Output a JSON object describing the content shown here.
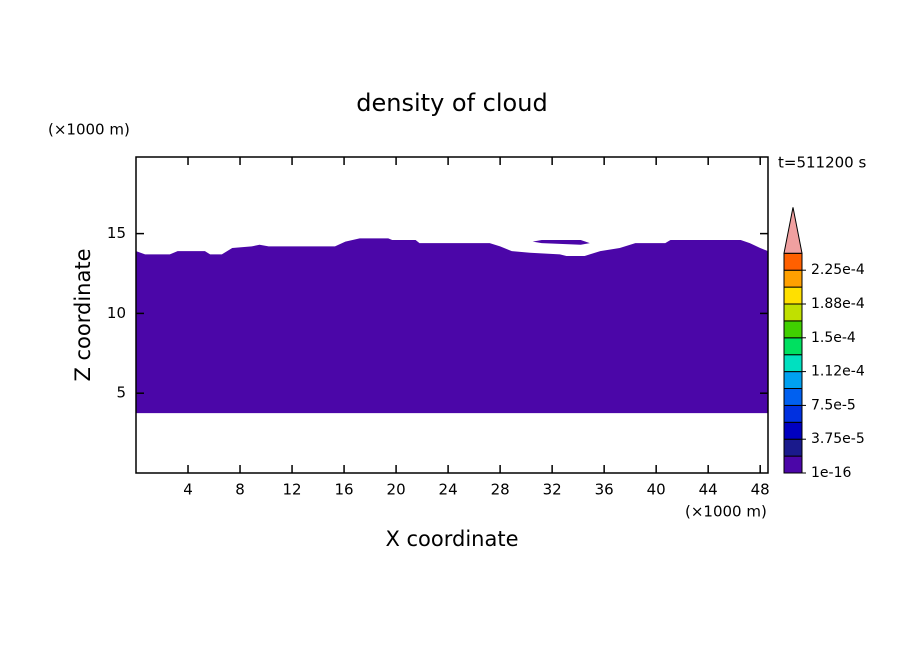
{
  "chart_data": {
    "type": "contour",
    "title": "density of cloud",
    "y_unit": "(×1000 m)",
    "x_unit": "(×1000 m)",
    "time_label": "t=511200 s",
    "xlabel": "X coordinate",
    "ylabel": "Z coordinate",
    "xlim": [
      0,
      48.6
    ],
    "ylim": [
      0,
      19.8
    ],
    "xticks": [
      4,
      8,
      12,
      16,
      20,
      24,
      28,
      32,
      36,
      40,
      44,
      48
    ],
    "yticks": [
      5,
      10,
      15
    ],
    "regions": [
      {
        "color": "#4b06a8",
        "x": [
          0,
          0.7,
          2.6,
          3.2,
          5.3,
          5.7,
          6.6,
          7.4,
          8.9,
          9.5,
          10.2,
          15.3,
          16.1,
          17.2,
          19.4,
          19.7,
          21.5,
          21.8,
          27.2,
          28,
          28.9,
          30.3,
          32.6,
          33.1,
          34.5,
          35.7,
          37.2,
          38.4,
          40.7,
          41.1,
          46.5,
          47.2,
          48,
          48.6,
          48.6,
          0
        ],
        "y": [
          13.9,
          13.7,
          13.7,
          13.9,
          13.9,
          13.7,
          13.7,
          14.1,
          14.2,
          14.3,
          14.2,
          14.2,
          14.5,
          14.7,
          14.7,
          14.6,
          14.6,
          14.4,
          14.4,
          14.2,
          13.9,
          13.8,
          13.7,
          13.6,
          13.6,
          13.9,
          14.1,
          14.4,
          14.4,
          14.6,
          14.6,
          14.4,
          14.1,
          13.9,
          3.75,
          3.75
        ]
      },
      {
        "color": "#4b06a8",
        "x": [
          30.5,
          31.2,
          34.2,
          34.9,
          34.2,
          31.2
        ],
        "y": [
          14.5,
          14.6,
          14.6,
          14.4,
          14.3,
          14.4
        ]
      }
    ],
    "colorbar": {
      "levels": [
        1e-16,
        1.875e-05,
        3.75e-05,
        5.625e-05,
        7.5e-05,
        9.375e-05,
        0.0001125,
        0.00013125,
        0.00015,
        0.00016875,
        0.0001875,
        0.00020625,
        0.000225,
        0.00024375
      ],
      "colors": [
        "#4b06a8",
        "#1a1a8c",
        "#0000c0",
        "#0030e0",
        "#0060f0",
        "#00a0f0",
        "#00e0c0",
        "#00e060",
        "#40d000",
        "#c0e000",
        "#ffe000",
        "#ffa000",
        "#ff6000"
      ],
      "extend_color": "#f0a0a0",
      "ticks": [
        {
          "value": 1e-16,
          "label": "1e-16"
        },
        {
          "value": 3.75e-05,
          "label": "3.75e-5"
        },
        {
          "value": 7.5e-05,
          "label": "7.5e-5"
        },
        {
          "value": 0.0001125,
          "label": "1.12e-4"
        },
        {
          "value": 0.00015,
          "label": "1.5e-4"
        },
        {
          "value": 0.0001875,
          "label": "1.88e-4"
        },
        {
          "value": 0.000225,
          "label": "2.25e-4"
        }
      ]
    }
  }
}
